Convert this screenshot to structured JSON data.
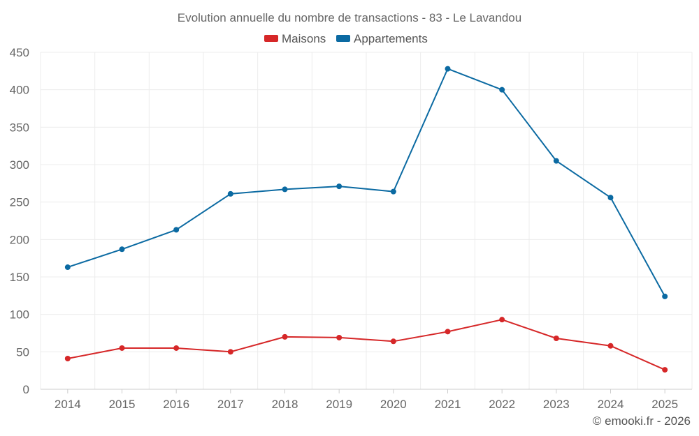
{
  "chart_data": {
    "type": "line",
    "title": "Evolution annuelle du nombre de transactions - 83 - Le Lavandou",
    "categories": [
      "2014",
      "2015",
      "2016",
      "2017",
      "2018",
      "2019",
      "2020",
      "2021",
      "2022",
      "2023",
      "2024",
      "2025"
    ],
    "series": [
      {
        "name": "Maisons",
        "color": "#d62728",
        "values": [
          41,
          55,
          55,
          50,
          70,
          69,
          64,
          77,
          93,
          68,
          58,
          26
        ]
      },
      {
        "name": "Appartements",
        "color": "#0b6aa2",
        "values": [
          163,
          187,
          213,
          261,
          267,
          271,
          264,
          428,
          400,
          305,
          256,
          124
        ]
      }
    ],
    "ylim": [
      0,
      450
    ],
    "yticks": [
      0,
      50,
      100,
      150,
      200,
      250,
      300,
      350,
      400,
      450
    ],
    "grid": true,
    "legend": "top-center",
    "xlabel": "",
    "ylabel": ""
  },
  "credit": "© emooki.fr - 2026"
}
